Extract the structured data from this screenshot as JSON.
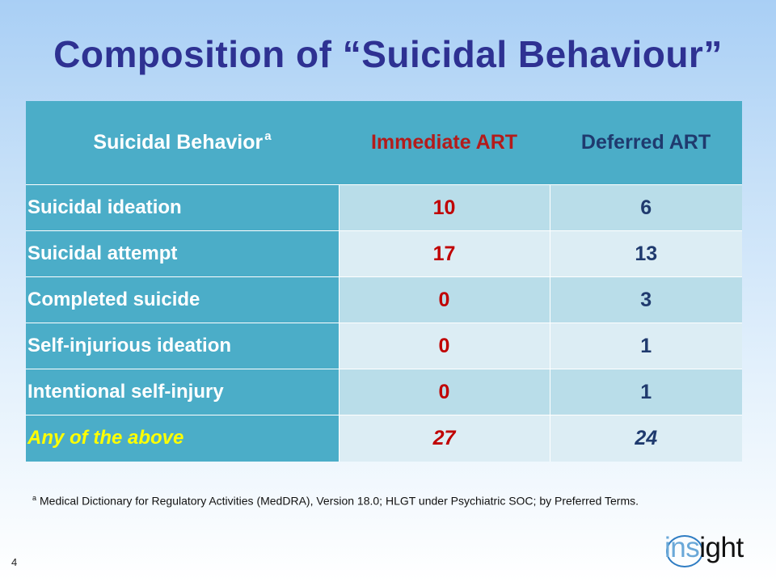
{
  "slide": {
    "title": "Composition of “Suicidal Behaviour”",
    "page_number": "4"
  },
  "table": {
    "headers": {
      "label": "Suicidal Behavior",
      "label_superscript": "a",
      "immediate": "Immediate ART",
      "deferred": "Deferred ART"
    },
    "rows": [
      {
        "label": "Suicidal ideation",
        "immediate": "10",
        "deferred": "6"
      },
      {
        "label": "Suicidal attempt",
        "immediate": "17",
        "deferred": "13"
      },
      {
        "label": "Completed suicide",
        "immediate": "0",
        "deferred": "3"
      },
      {
        "label": "Self-injurious ideation",
        "immediate": "0",
        "deferred": "1"
      },
      {
        "label": "Intentional self-injury",
        "immediate": "0",
        "deferred": "1"
      },
      {
        "label": "Any of the above",
        "immediate": "27",
        "deferred": "24"
      }
    ]
  },
  "footnote": {
    "marker": "a",
    "text": "Medical Dictionary for Regulatory Activities (MedDRA), Version 18.0; HLGT under Psychiatric SOC; by Preferred Terms."
  },
  "logo": {
    "part1": "ins",
    "part2": "ight"
  },
  "colors": {
    "title": "#2e3192",
    "header_bg": "#4badc8",
    "immediate": "#c00000",
    "deferred": "#1f3a6e",
    "total_label": "#ffff00"
  }
}
